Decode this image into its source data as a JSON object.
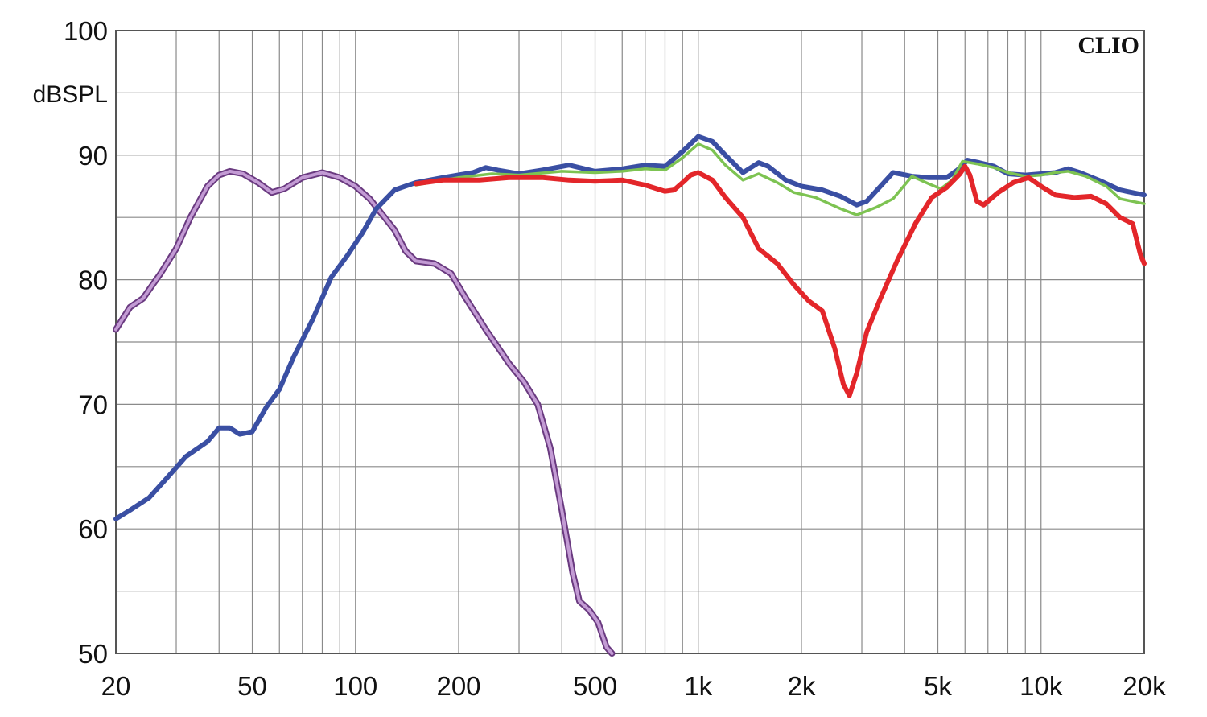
{
  "chart_data": {
    "type": "line",
    "ylabel": "dBSPL",
    "brand": "CLIO",
    "x_scale": "log",
    "xlim": [
      20,
      20000
    ],
    "ylim": [
      50,
      100
    ],
    "grid": true,
    "x_ticks": [
      {
        "value": 20,
        "label": "20"
      },
      {
        "value": 50,
        "label": "50"
      },
      {
        "value": 100,
        "label": "100"
      },
      {
        "value": 200,
        "label": "200"
      },
      {
        "value": 500,
        "label": "500"
      },
      {
        "value": 1000,
        "label": "1k"
      },
      {
        "value": 2000,
        "label": "2k"
      },
      {
        "value": 5000,
        "label": "5k"
      },
      {
        "value": 10000,
        "label": "10k"
      },
      {
        "value": 20000,
        "label": "20k"
      }
    ],
    "y_ticks": [
      {
        "value": 50,
        "label": "50"
      },
      {
        "value": 60,
        "label": "60"
      },
      {
        "value": 70,
        "label": "70"
      },
      {
        "value": 80,
        "label": "80"
      },
      {
        "value": 90,
        "label": "90"
      },
      {
        "value": 100,
        "label": "100"
      }
    ],
    "series": [
      {
        "color": "#9a5fb0",
        "points": [
          [
            20,
            76
          ],
          [
            22,
            77.8
          ],
          [
            24,
            78.5
          ],
          [
            27,
            80.5
          ],
          [
            30,
            82.5
          ],
          [
            33,
            85
          ],
          [
            37,
            87.5
          ],
          [
            40,
            88.4
          ],
          [
            43,
            88.7
          ],
          [
            47,
            88.5
          ],
          [
            52,
            87.8
          ],
          [
            57,
            87
          ],
          [
            62,
            87.3
          ],
          [
            70,
            88.2
          ],
          [
            80,
            88.6
          ],
          [
            90,
            88.2
          ],
          [
            100,
            87.5
          ],
          [
            110,
            86.5
          ],
          [
            120,
            85.2
          ],
          [
            130,
            84
          ],
          [
            140,
            82.3
          ],
          [
            150,
            81.5
          ],
          [
            170,
            81.3
          ],
          [
            190,
            80.5
          ],
          [
            210,
            78.5
          ],
          [
            240,
            76
          ],
          [
            280,
            73.3
          ],
          [
            310,
            71.8
          ],
          [
            340,
            70
          ],
          [
            370,
            66.5
          ],
          [
            400,
            61.5
          ],
          [
            430,
            56.5
          ],
          [
            450,
            54.2
          ],
          [
            480,
            53.5
          ],
          [
            510,
            52.5
          ],
          [
            540,
            50.5
          ],
          [
            560,
            49.5
          ]
        ]
      },
      {
        "color": "#3a4fa3",
        "points": [
          [
            20,
            60.8
          ],
          [
            22,
            61.5
          ],
          [
            25,
            62.5
          ],
          [
            28,
            64
          ],
          [
            32,
            65.8
          ],
          [
            37,
            67
          ],
          [
            40,
            68.1
          ],
          [
            43,
            68.1
          ],
          [
            46,
            67.6
          ],
          [
            50,
            67.8
          ],
          [
            55,
            69.8
          ],
          [
            60,
            71.2
          ],
          [
            66,
            73.8
          ],
          [
            75,
            76.8
          ],
          [
            85,
            80.2
          ],
          [
            95,
            82
          ],
          [
            105,
            83.8
          ],
          [
            115,
            85.7
          ],
          [
            130,
            87.2
          ],
          [
            150,
            87.8
          ],
          [
            180,
            88.2
          ],
          [
            220,
            88.6
          ],
          [
            240,
            89
          ],
          [
            260,
            88.8
          ],
          [
            300,
            88.5
          ],
          [
            350,
            88.8
          ],
          [
            420,
            89.2
          ],
          [
            500,
            88.7
          ],
          [
            600,
            88.9
          ],
          [
            700,
            89.2
          ],
          [
            800,
            89.1
          ],
          [
            900,
            90.3
          ],
          [
            1000,
            91.5
          ],
          [
            1100,
            91.1
          ],
          [
            1200,
            90
          ],
          [
            1350,
            88.6
          ],
          [
            1500,
            89.4
          ],
          [
            1600,
            89.1
          ],
          [
            1800,
            88
          ],
          [
            2000,
            87.5
          ],
          [
            2300,
            87.2
          ],
          [
            2600,
            86.7
          ],
          [
            2900,
            86
          ],
          [
            3100,
            86.3
          ],
          [
            3400,
            87.5
          ],
          [
            3700,
            88.6
          ],
          [
            4200,
            88.3
          ],
          [
            4700,
            88.2
          ],
          [
            5300,
            88.2
          ],
          [
            5700,
            88.8
          ],
          [
            6100,
            89.6
          ],
          [
            6600,
            89.4
          ],
          [
            7300,
            89.1
          ],
          [
            8000,
            88.5
          ],
          [
            9000,
            88.4
          ],
          [
            10000,
            88.5
          ],
          [
            11000,
            88.6
          ],
          [
            12000,
            88.9
          ],
          [
            13000,
            88.6
          ],
          [
            15000,
            87.9
          ],
          [
            17000,
            87.2
          ],
          [
            20000,
            86.8
          ]
        ]
      },
      {
        "color": "#7dc352",
        "points": [
          [
            150,
            87.6
          ],
          [
            200,
            88.2
          ],
          [
            250,
            88.5
          ],
          [
            300,
            88.4
          ],
          [
            400,
            88.7
          ],
          [
            500,
            88.6
          ],
          [
            600,
            88.7
          ],
          [
            700,
            88.9
          ],
          [
            800,
            88.8
          ],
          [
            900,
            89.8
          ],
          [
            1000,
            90.9
          ],
          [
            1100,
            90.4
          ],
          [
            1200,
            89.2
          ],
          [
            1350,
            88
          ],
          [
            1500,
            88.5
          ],
          [
            1700,
            87.8
          ],
          [
            1900,
            87
          ],
          [
            2200,
            86.6
          ],
          [
            2600,
            85.7
          ],
          [
            2900,
            85.2
          ],
          [
            3300,
            85.8
          ],
          [
            3700,
            86.5
          ],
          [
            4200,
            88.3
          ],
          [
            4700,
            87.7
          ],
          [
            5100,
            87.3
          ],
          [
            5500,
            88
          ],
          [
            5900,
            89.5
          ],
          [
            6500,
            89.3
          ],
          [
            7300,
            89
          ],
          [
            8000,
            88.6
          ],
          [
            9000,
            88.3
          ],
          [
            10000,
            88.4
          ],
          [
            11000,
            88.6
          ],
          [
            12000,
            88.7
          ],
          [
            13500,
            88.3
          ],
          [
            15500,
            87.5
          ],
          [
            17000,
            86.5
          ],
          [
            20000,
            86.1
          ]
        ]
      },
      {
        "color": "#e3262a",
        "points": [
          [
            150,
            87.7
          ],
          [
            180,
            88
          ],
          [
            230,
            88
          ],
          [
            280,
            88.2
          ],
          [
            350,
            88.2
          ],
          [
            420,
            88
          ],
          [
            500,
            87.9
          ],
          [
            600,
            88
          ],
          [
            700,
            87.6
          ],
          [
            800,
            87.1
          ],
          [
            850,
            87.2
          ],
          [
            900,
            87.8
          ],
          [
            950,
            88.4
          ],
          [
            1000,
            88.6
          ],
          [
            1100,
            88
          ],
          [
            1200,
            86.6
          ],
          [
            1350,
            85
          ],
          [
            1500,
            82.5
          ],
          [
            1700,
            81.3
          ],
          [
            1900,
            79.6
          ],
          [
            2100,
            78.3
          ],
          [
            2300,
            77.5
          ],
          [
            2500,
            74.5
          ],
          [
            2650,
            71.6
          ],
          [
            2760,
            70.7
          ],
          [
            2900,
            72.5
          ],
          [
            3100,
            75.8
          ],
          [
            3400,
            78.5
          ],
          [
            3800,
            81.5
          ],
          [
            4300,
            84.5
          ],
          [
            4800,
            86.6
          ],
          [
            5300,
            87.4
          ],
          [
            5800,
            88.5
          ],
          [
            6000,
            89.1
          ],
          [
            6200,
            88.4
          ],
          [
            6500,
            86.3
          ],
          [
            6800,
            86
          ],
          [
            7500,
            87
          ],
          [
            8300,
            87.8
          ],
          [
            9200,
            88.2
          ],
          [
            10000,
            87.5
          ],
          [
            11000,
            86.8
          ],
          [
            12500,
            86.6
          ],
          [
            14000,
            86.7
          ],
          [
            15500,
            86.1
          ],
          [
            17000,
            85
          ],
          [
            18500,
            84.5
          ],
          [
            19500,
            82
          ],
          [
            20000,
            81.3
          ]
        ]
      }
    ]
  }
}
